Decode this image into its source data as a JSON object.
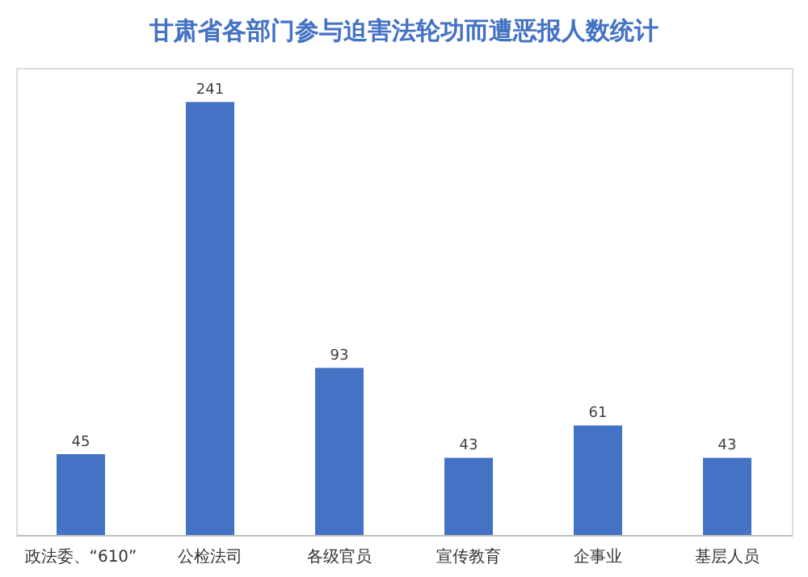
{
  "chart_data": {
    "type": "bar",
    "title": "甘肃省各部门参与迫害法轮功而遭恶报人数统计",
    "categories": [
      "政法委、“610”",
      "公检法司",
      "各级官员",
      "宣传教育",
      "企事业",
      "基层人员"
    ],
    "values": [
      45,
      241,
      93,
      43,
      61,
      43
    ],
    "color": "#4472c4",
    "data_labels": true
  }
}
